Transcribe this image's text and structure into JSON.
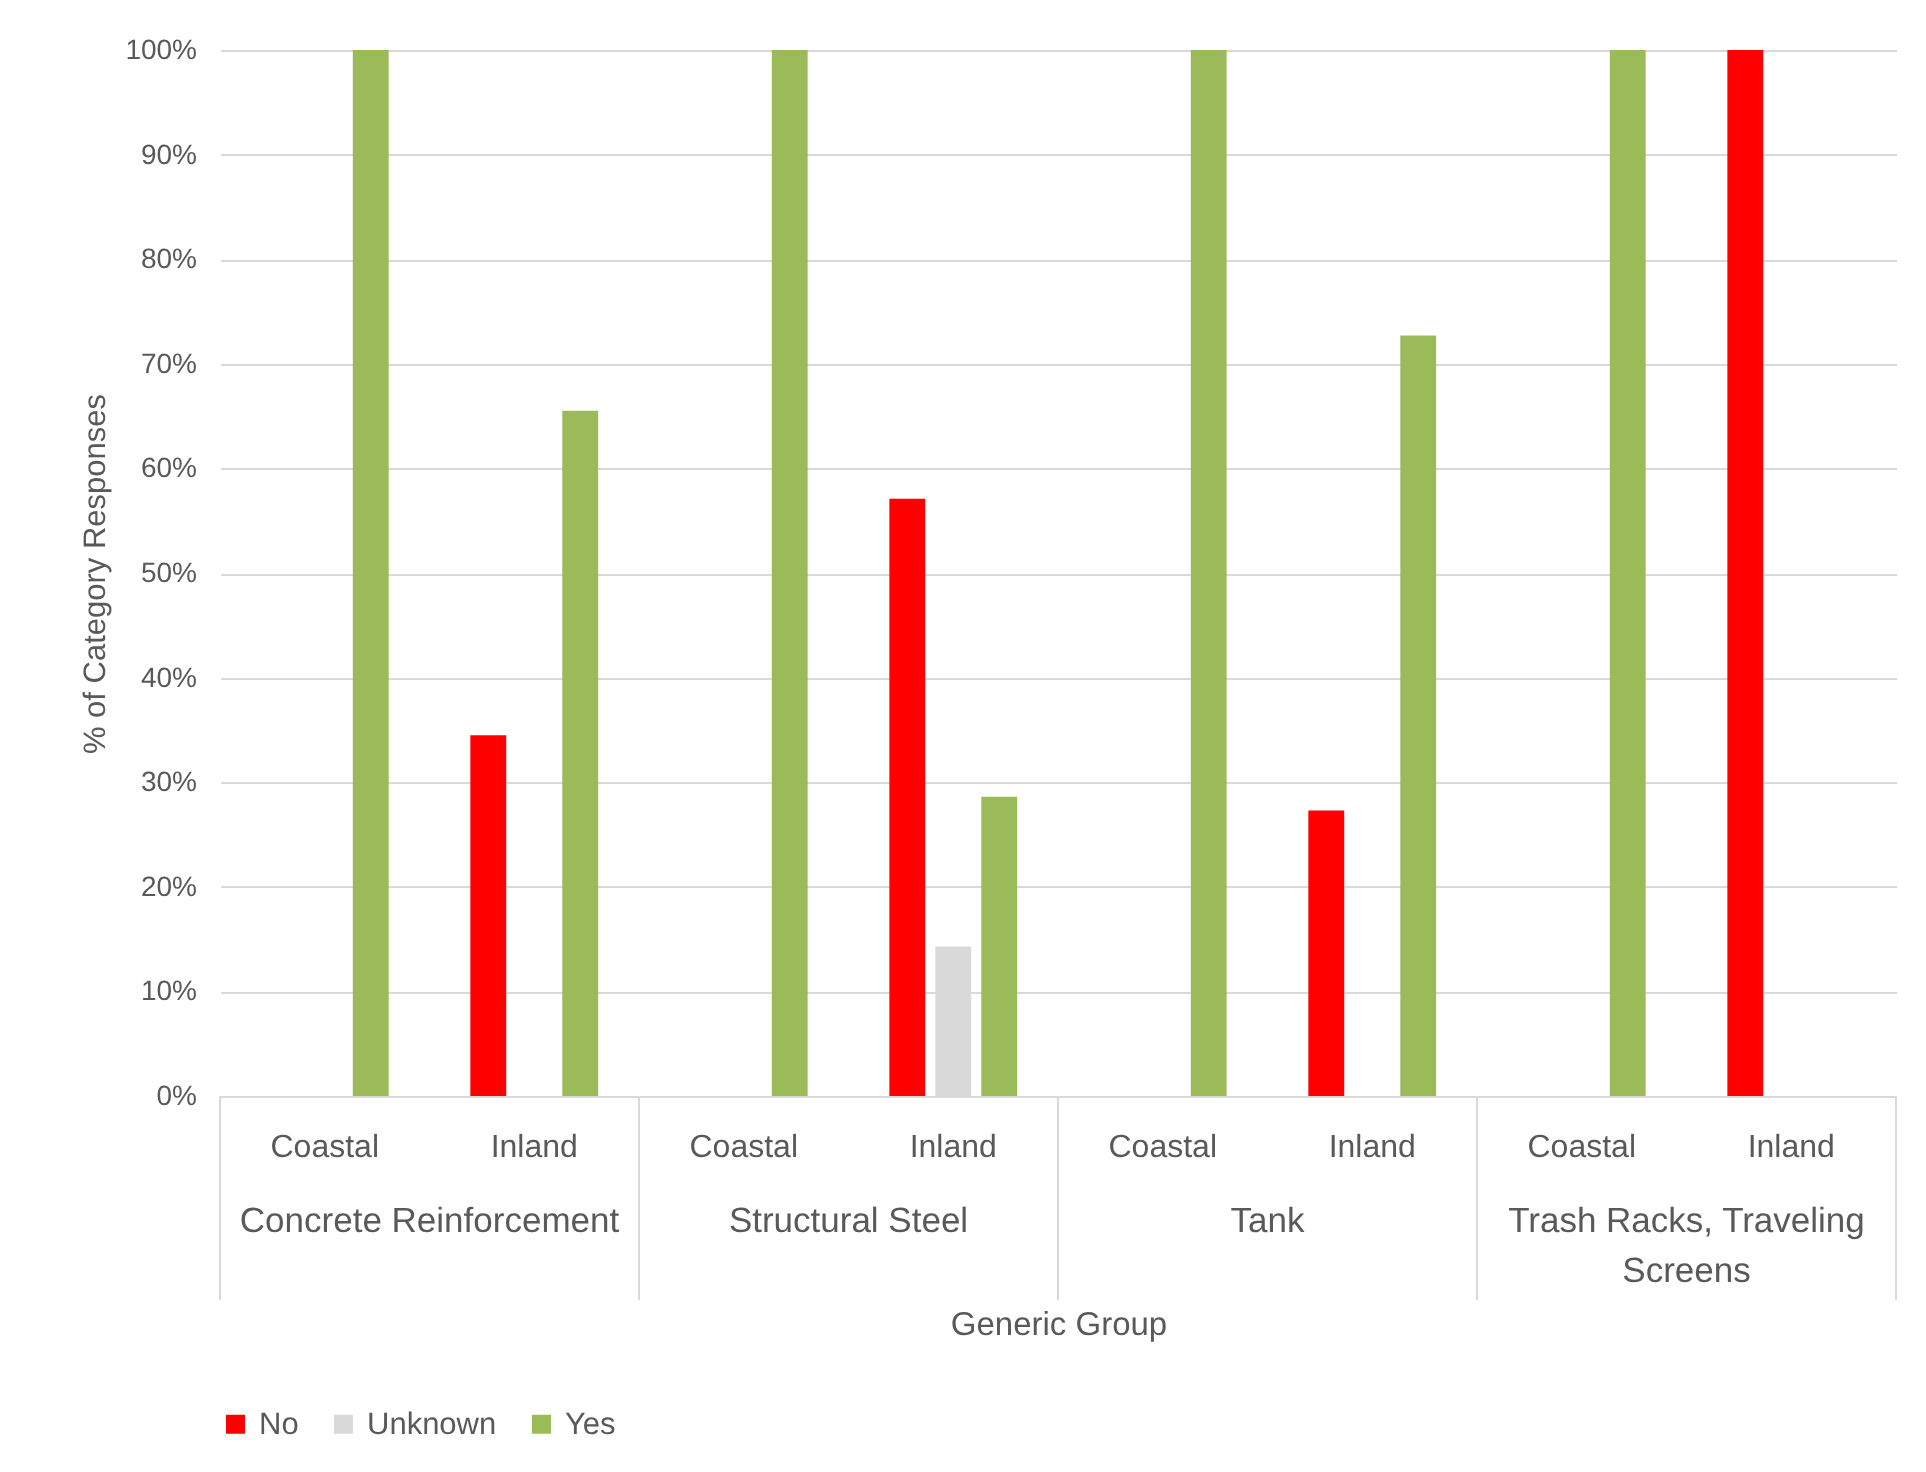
{
  "chart_data": {
    "type": "bar",
    "ylabel": "% of Category Responses",
    "xlabel": "Generic Group",
    "categories": [
      "Coastal",
      "Inland",
      "Coastal",
      "Inland",
      "Coastal",
      "Inland",
      "Coastal",
      "Inland"
    ],
    "annotations": [
      "Concrete Reinforcement",
      "Structural Steel",
      "Tank",
      "Trash Racks, Traveling Screens"
    ],
    "series": [
      {
        "name": "No",
        "color": "#ff0000",
        "values": [
          null,
          34.5,
          null,
          57.1,
          null,
          27.3,
          null,
          100
        ]
      },
      {
        "name": "Unknown",
        "color": "#d9d9d9",
        "values": [
          null,
          null,
          null,
          14.3,
          null,
          null,
          null,
          null
        ]
      },
      {
        "name": "Yes",
        "color": "#9bbb59",
        "values": [
          100,
          65.5,
          100,
          28.6,
          100,
          72.7,
          100,
          null
        ]
      }
    ],
    "ylim": [
      0,
      100
    ],
    "yticks": [
      {
        "value": 0,
        "label": "0%"
      },
      {
        "value": 10,
        "label": "10%"
      },
      {
        "value": 20,
        "label": "20%"
      },
      {
        "value": 30,
        "label": "30%"
      },
      {
        "value": 40,
        "label": "40%"
      },
      {
        "value": 50,
        "label": "50%"
      },
      {
        "value": 60,
        "label": "60%"
      },
      {
        "value": 70,
        "label": "70%"
      },
      {
        "value": 80,
        "label": "80%"
      },
      {
        "value": 90,
        "label": "90%"
      },
      {
        "value": 100,
        "label": "100%"
      }
    ],
    "grid": "y",
    "legend": "bottom"
  }
}
